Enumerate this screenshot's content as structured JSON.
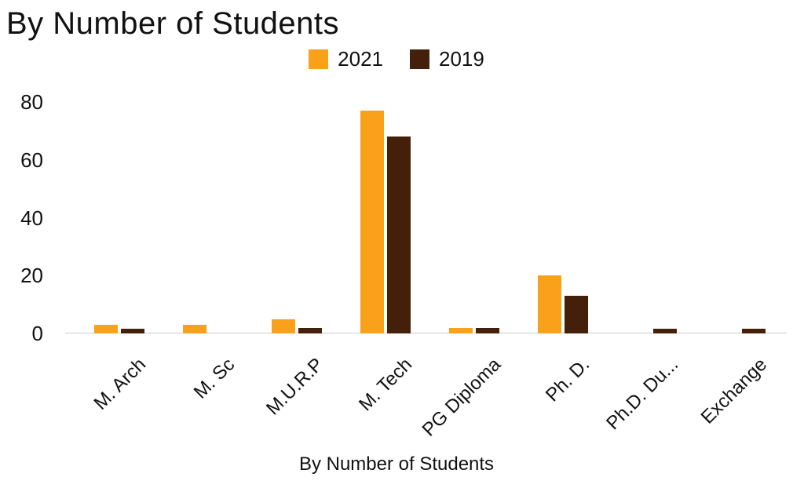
{
  "chart_data": {
    "type": "bar",
    "title": "By Number of Students",
    "xlabel": "By Number of Students",
    "ylabel": "",
    "categories": [
      "M. Arch",
      "M. Sc",
      "M.U.R.P",
      "M. Tech",
      "PG Diploma",
      "Ph. D.",
      "Ph.D. Du...",
      "Exchange"
    ],
    "series": [
      {
        "name": "2021",
        "color": "#F9A11B",
        "values": [
          3,
          3,
          5,
          77,
          2,
          20,
          0,
          0
        ]
      },
      {
        "name": "2019",
        "color": "#44200B",
        "values": [
          1.5,
          0,
          2,
          68,
          2,
          13,
          1.5,
          1.5
        ]
      }
    ],
    "y_ticks": [
      0,
      20,
      40,
      60,
      80
    ],
    "ylim": [
      0,
      80
    ],
    "legend_position": "top",
    "grid": false
  }
}
